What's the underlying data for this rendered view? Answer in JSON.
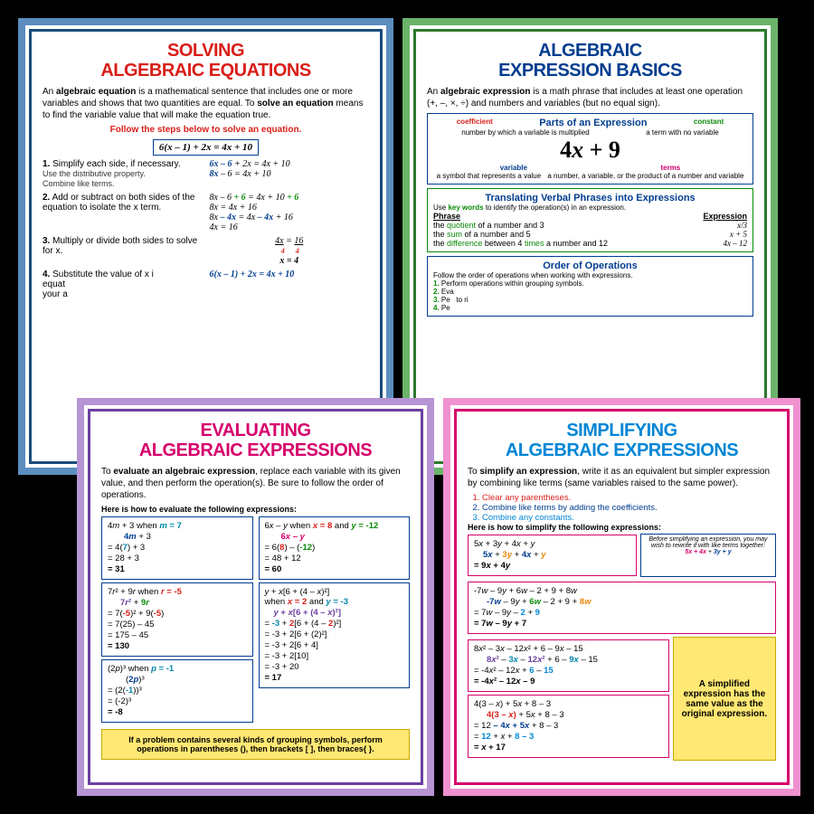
{
  "p1": {
    "title": "SOLVING\nALGEBRAIC EQUATIONS",
    "intro": "An <b>algebraic equation</b> is a mathematical sentence that includes one or more variables and shows that two quantities are equal. To <b>solve an equation</b> means to find the variable value that will make the equation true.",
    "subhead": "Follow the steps below to solve an equation.",
    "equation": "6(x – 1) + 2x = 4x + 10",
    "s1t": "Simplify each side, if necessary.",
    "s1a": "Use the distributive property.",
    "s1b": "Combine like terms.",
    "s1m1": "6x – 6 + 2x = 4x + 10",
    "s1m2": "8x – 6 = 4x + 10",
    "s2t": "Add or subtract on both sides of the equation to isolate the x term.",
    "s2m1": "8x – 6 + 6 = 4x + 10 + 6",
    "s2m2": "8x = 4x + 16",
    "s2m3": "8x – 4x = 4x – 4x + 16",
    "s2m4": "4x = 16",
    "s3t": "Multiply or divide both sides to solve for x.",
    "s3m1": "4x / 4 = 16 / 4",
    "s3m2": "x = 4",
    "s4t": "Substitute the value of x i",
    "s4m": "6(x – 1) + 2x = 4x + 10"
  },
  "p2": {
    "title": "ALGEBRAIC\nEXPRESSION BASICS",
    "intro": "An <b>algebraic expression</b> is a math phrase that includes at least one operation (+, –, ×, ÷) and numbers and variables (but no equal sign).",
    "parts_title": "Parts of an Expression",
    "lbl_coef": "coefficient",
    "lbl_coef_d": "number by which a variable is multiplied",
    "lbl_const": "constant",
    "lbl_const_d": "a term with no variable",
    "lbl_var": "variable",
    "lbl_var_d": "a symbol that represents a value",
    "lbl_terms": "terms",
    "lbl_terms_d": "a number, a variable, or the product of a number and variable",
    "big_expr": "4x + 9",
    "trans_title": "Translating Verbal Phrases into Expressions",
    "trans_sub": "Use key words to identify the operation(s) in an expression.",
    "th1": "Phrase",
    "th2": "Expression",
    "r1a": "the quotient of a number and 3",
    "r1b": "x/3",
    "r2a": "the sum of a number and 5",
    "r2b": "x + 5",
    "r3a": "the difference between 4 times a number and 12",
    "r3b": "4x – 12",
    "ord_title": "Order of Operations",
    "ord_sub": "Follow the order of operations when working with expressions.",
    "o1": "Perform operations within grouping symbols.",
    "o2": "Eva",
    "o3": "Pe",
    "o4": "Pe"
  },
  "p3": {
    "title": "EVALUATING\nALGEBRAIC EXPRESSIONS",
    "intro": "To <b>evaluate an algebraic expression</b>, replace each variable with its given value, and then perform the operation(s). Be sure to follow the order of operations.",
    "sub": "Here is how to evaluate the following expressions:",
    "ex1_h": "4m + 3 when m = 7",
    "ex1_1": "4m + 3",
    "ex1_2": "= 4(7) + 3",
    "ex1_3": "= 28 + 3",
    "ex1_4": "= 31",
    "ex2_h": "6x – y when x = 8 and y = -12",
    "ex2_1": "6x – y",
    "ex2_2": "= 6(8) – (-12)",
    "ex2_3": "= 48 + 12",
    "ex2_4": "= 60",
    "ex3_h": "7r² + 9r when r = -5",
    "ex3_1": "7r² + 9r",
    "ex3_2": "= 7(-5)² + 9(-5)",
    "ex3_3": "= 7(25) – 45",
    "ex3_4": "= 175 – 45",
    "ex3_5": "= 130",
    "ex4_h": "(2p)³ when p = -1",
    "ex4_1": "(2p)³",
    "ex4_2": "= (2(-1))³",
    "ex4_3": "= (-2)³",
    "ex4_4": "= -8",
    "ex5_h": "y + x[6 + (4 – x)²] when x = 2 and y = -3",
    "ex5_1": "y + x[6 + (4 – x)²]",
    "ex5_2": "= -3 + 2[6 + (4 – 2)²]",
    "ex5_3": "= -3 + 2[6 + (2)²]",
    "ex5_4": "= -3 + 2[6 + 4]",
    "ex5_5": "= -3 + 2[10]",
    "ex5_6": "= -3 + 20",
    "ex5_7": "= 17",
    "tip": "If a problem contains several kinds of grouping symbols, perform operations in parentheses (), then brackets [ ], then braces{ }."
  },
  "p4": {
    "title": "SIMPLIFYING\nALGEBRAIC EXPRESSIONS",
    "intro": "To <b>simplify an expression</b>, write it as an equivalent but simpler expression by combining like terms (same variables raised to the same power).",
    "s1": "Clear any parentheses.",
    "s2": "Combine like terms by adding the coefficients.",
    "s3": "Combine any constants.",
    "sub": "Here is how to simplify the following expressions:",
    "note1": "Before simplifying an expression, you may wish to rewrite it with like terms together:",
    "note2": "5x + 4x + 3y + y",
    "ex1_h": "5x + 3y + 4x + y",
    "ex1_1": "5x + 3y + 4x + y",
    "ex1_2": "= 9x + 4y",
    "ex2_h": "-7w – 9y + 6w – 2 + 9 + 8w",
    "ex2_1": "-7w – 9y + 6w – 2 + 9 + 8w",
    "ex2_2": "= 7w – 9y – 2 + 9",
    "ex2_3": "= 7w – 9y + 7",
    "ex3_h": "8x² – 3x – 12x² + 6 – 9x – 15",
    "ex3_1": "8x² – 3x – 12x² + 6 – 9x – 15",
    "ex3_2": "= -4x² – 12x + 6 – 15",
    "ex3_3": "= -4x² – 12x – 9",
    "ex4_h": "4(3 – x) + 5x + 8 – 3",
    "ex4_1": "4(3 – x) + 5x + 8 – 3",
    "ex4_2": "= 12 – 4x + 5x + 8 – 3",
    "ex4_3": "= 12 + x + 8 – 3",
    "ex4_4": "= x + 17",
    "tip": "A simplified expression has the same value as the original expression."
  }
}
